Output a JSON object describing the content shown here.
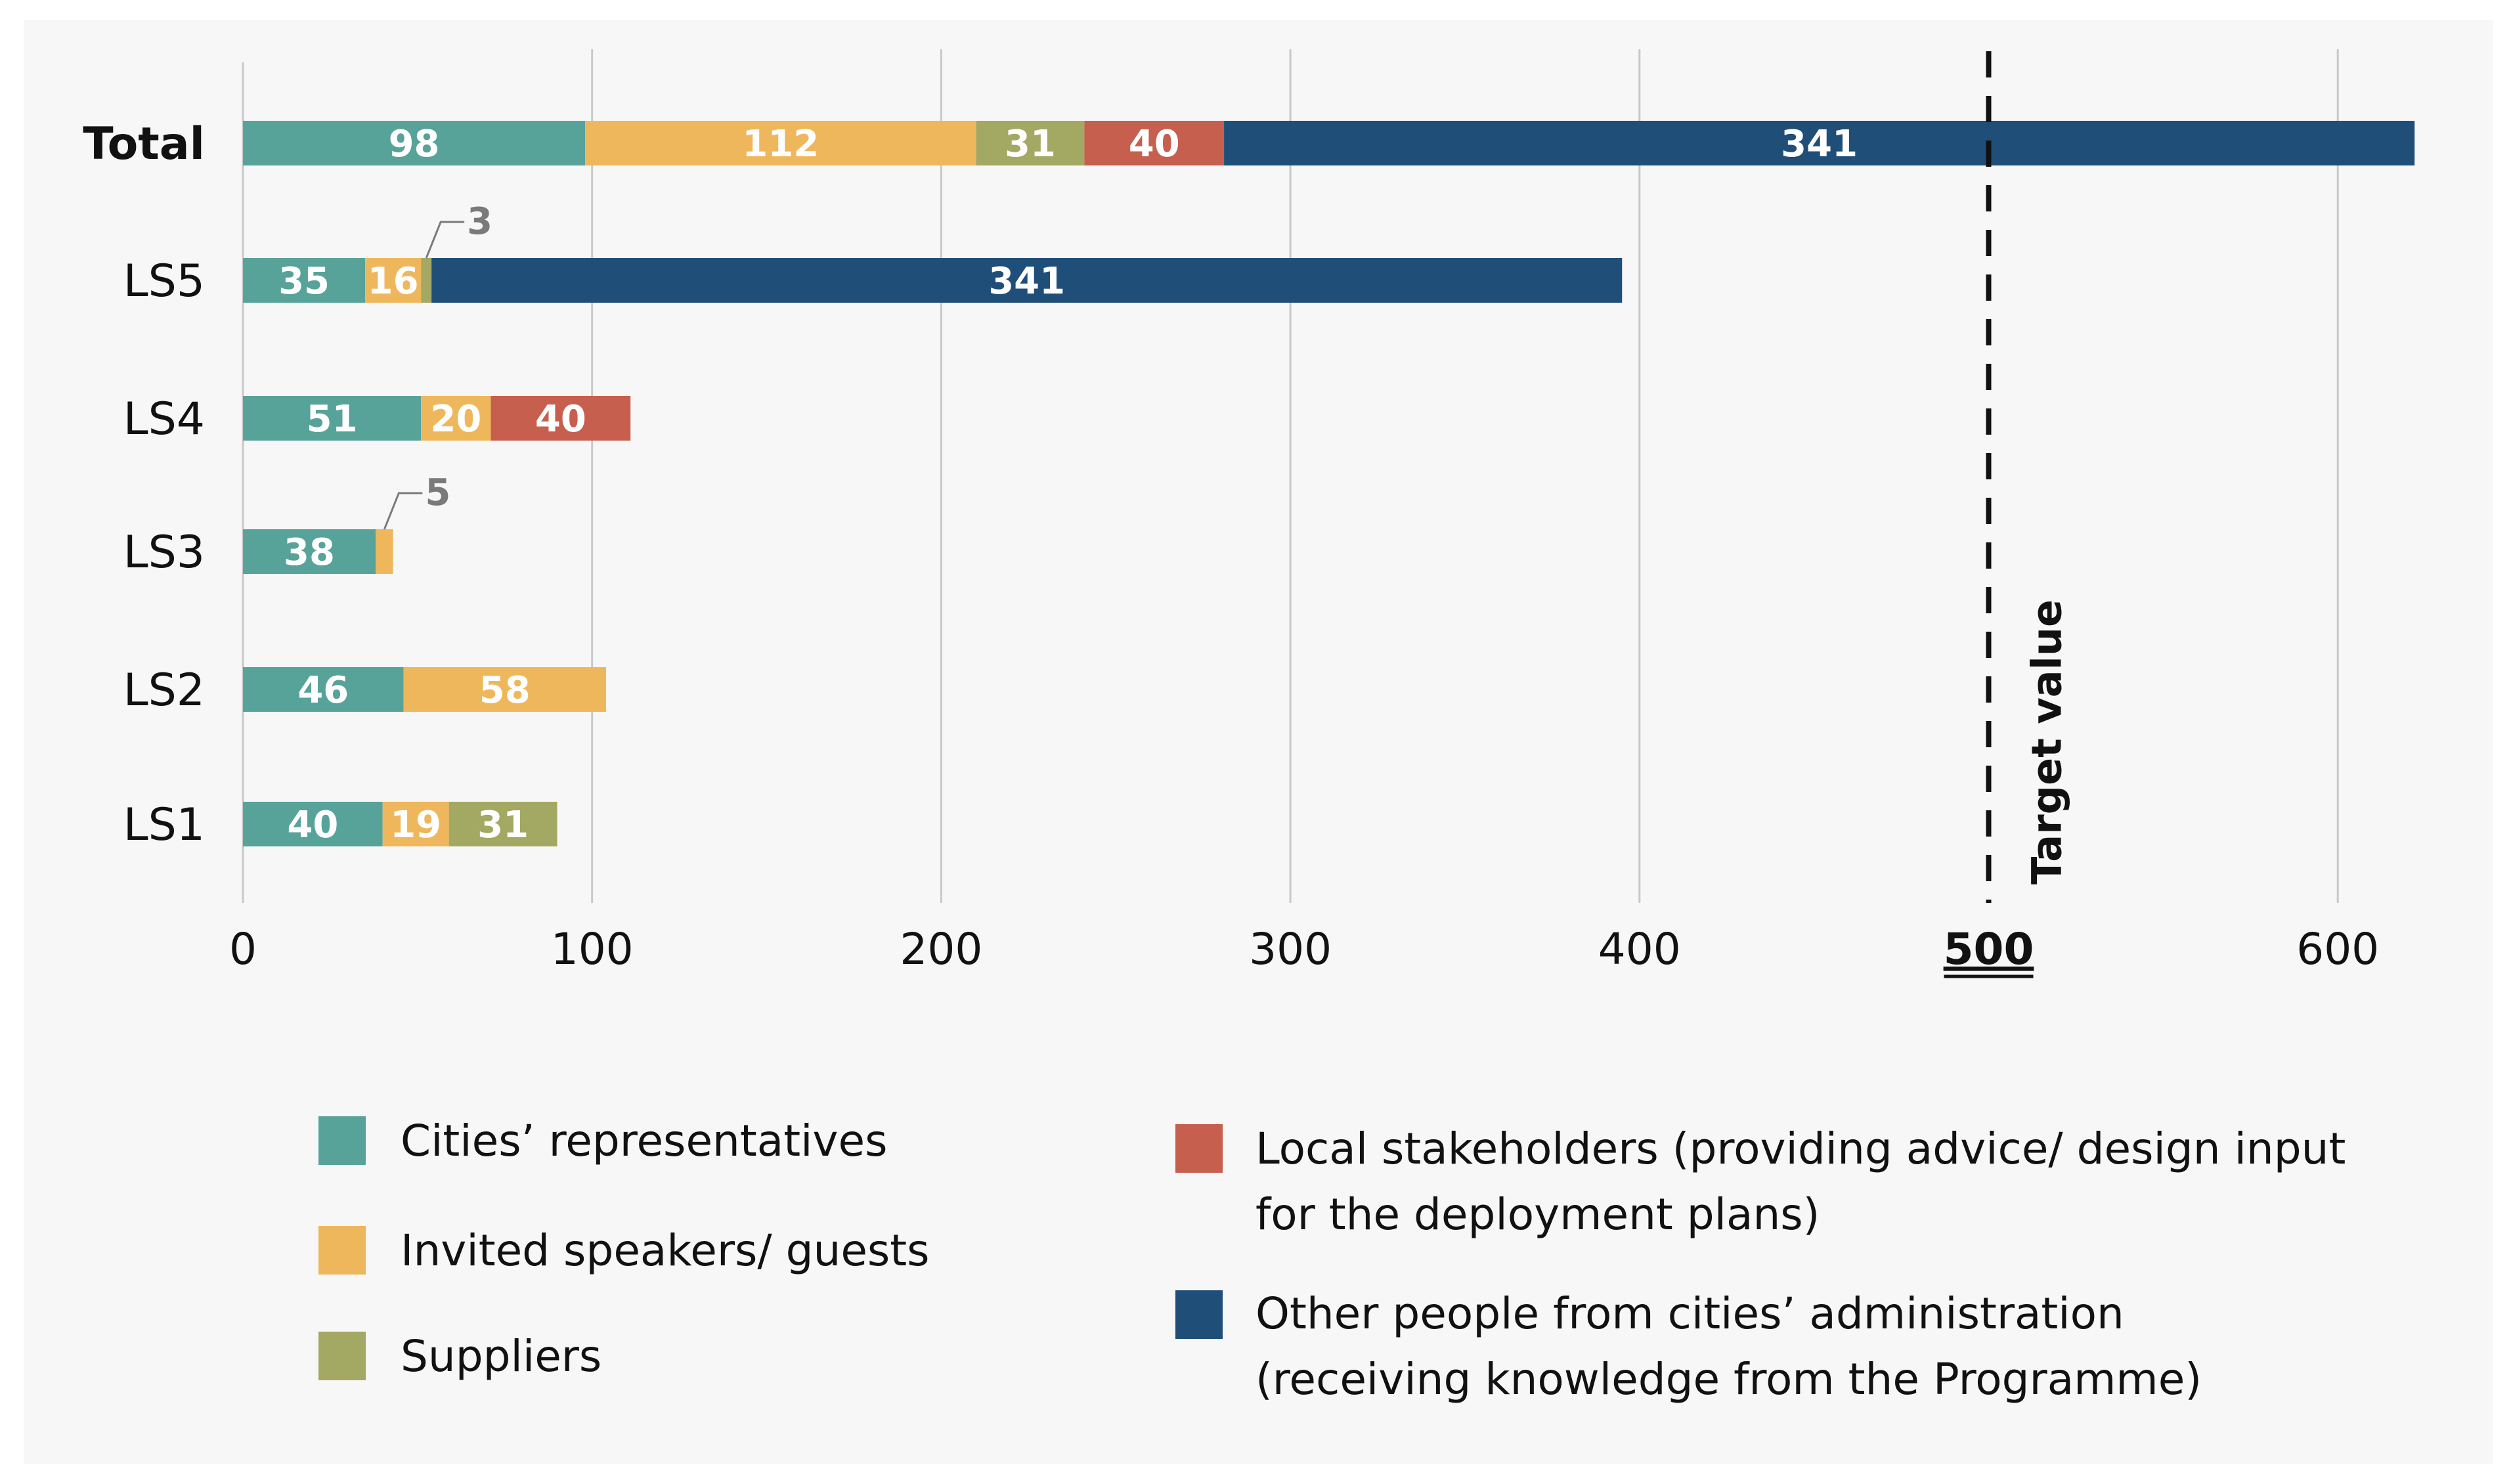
{
  "chart_data": {
    "type": "bar",
    "orientation": "horizontal",
    "stacked": true,
    "categories": [
      "Total",
      "LS5",
      "LS4",
      "LS3",
      "LS2",
      "LS1"
    ],
    "series": [
      {
        "name": "Cities’ representatives",
        "color": "#57a39a",
        "values": [
          98,
          35,
          51,
          38,
          46,
          40
        ]
      },
      {
        "name": "Invited speakers/ guests",
        "color": "#efb75c",
        "values": [
          112,
          16,
          20,
          5,
          58,
          19
        ]
      },
      {
        "name": "Suppliers",
        "color": "#a3a863",
        "values": [
          31,
          3,
          0,
          0,
          0,
          31
        ]
      },
      {
        "name": "Local stakeholders (providing advice/ design input for the deployment plans)",
        "color": "#c75f4e",
        "values": [
          40,
          0,
          40,
          0,
          0,
          0
        ]
      },
      {
        "name": "Other people from cities’ administration (receiving knowledge from the Programme)",
        "color": "#1f4e79",
        "values": [
          341,
          341,
          0,
          0,
          0,
          0
        ]
      }
    ],
    "bar_labels": [
      [
        "98",
        "112",
        "31",
        "40",
        "341"
      ],
      [
        "35",
        "16",
        "3",
        "",
        "341"
      ],
      [
        "51",
        "20",
        "",
        "40",
        ""
      ],
      [
        "38",
        "5",
        "",
        "",
        ""
      ],
      [
        "46",
        "58",
        "",
        "",
        ""
      ],
      [
        "40",
        "19",
        "31",
        "",
        ""
      ]
    ],
    "xlim": [
      0,
      620
    ],
    "xticks": [
      0,
      100,
      200,
      300,
      400,
      500,
      600
    ],
    "xtick_labels": [
      "0",
      "100",
      "200",
      "300",
      "400",
      "500",
      "600"
    ],
    "grid": true,
    "target": {
      "value": 500,
      "label": "Target value"
    },
    "legend_entries": [
      "Cities’ representatives",
      "Invited speakers/ guests",
      "Suppliers",
      "Local stakeholders (providing advice/ design input",
      "for the deployment plans)",
      "Other people from cities’ administration",
      "(receiving knowledge from the Programme)"
    ],
    "legend_position": "bottom"
  }
}
